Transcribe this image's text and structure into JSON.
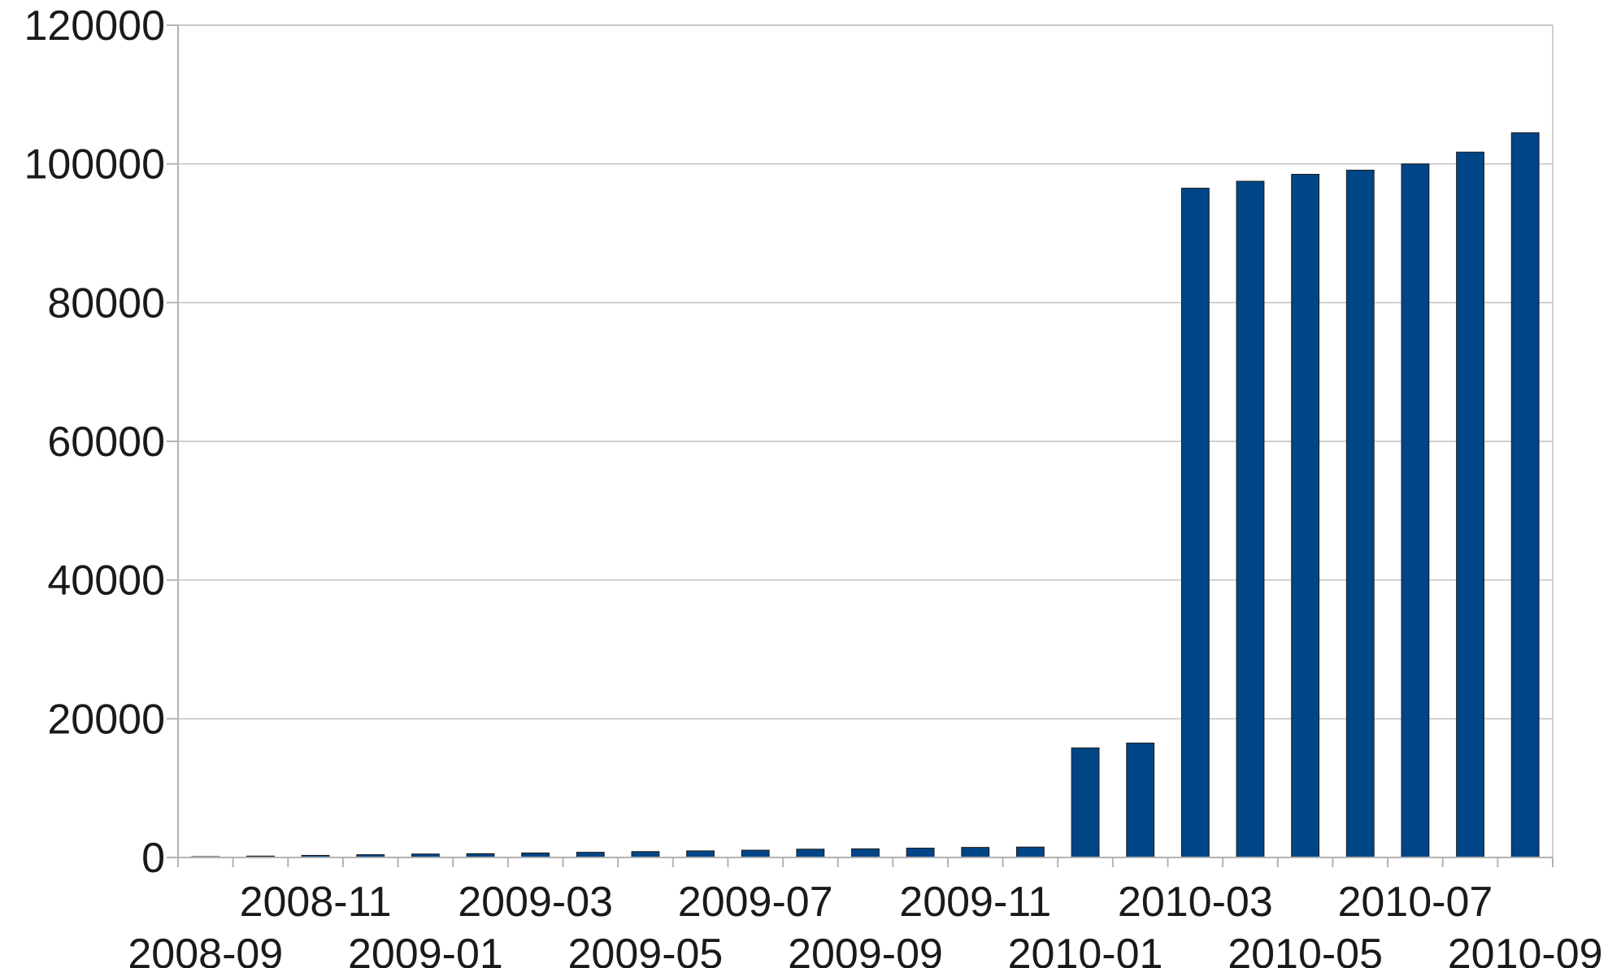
{
  "chart_data": {
    "type": "bar",
    "title": "",
    "xlabel": "",
    "ylabel": "",
    "ylim": [
      0,
      120000
    ],
    "yticks": [
      0,
      20000,
      40000,
      60000,
      80000,
      100000,
      120000
    ],
    "grid": true,
    "legend": "none",
    "bar_color": "#004586",
    "categories": [
      "2008-09",
      "2008-10",
      "2008-11",
      "2008-12",
      "2009-01",
      "2009-02",
      "2009-03",
      "2009-04",
      "2009-05",
      "2009-06",
      "2009-07",
      "2009-08",
      "2009-09",
      "2009-10",
      "2009-11",
      "2009-12",
      "2010-01",
      "2010-02",
      "2010-03",
      "2010-04",
      "2010-05",
      "2010-06",
      "2010-07",
      "2010-08",
      "2010-09"
    ],
    "category_labels": [
      "2008-09",
      "2008-11",
      "2009-01",
      "2009-03",
      "2009-05",
      "2009-07",
      "2009-09",
      "2009-11",
      "2010-01",
      "2010-03",
      "2010-05",
      "2010-07",
      "2010-09"
    ],
    "values": [
      100,
      200,
      300,
      400,
      500,
      550,
      650,
      750,
      850,
      950,
      1050,
      1200,
      1250,
      1350,
      1450,
      1500,
      15800,
      16500,
      96500,
      97500,
      98500,
      99100,
      100000,
      101700,
      104500
    ]
  }
}
